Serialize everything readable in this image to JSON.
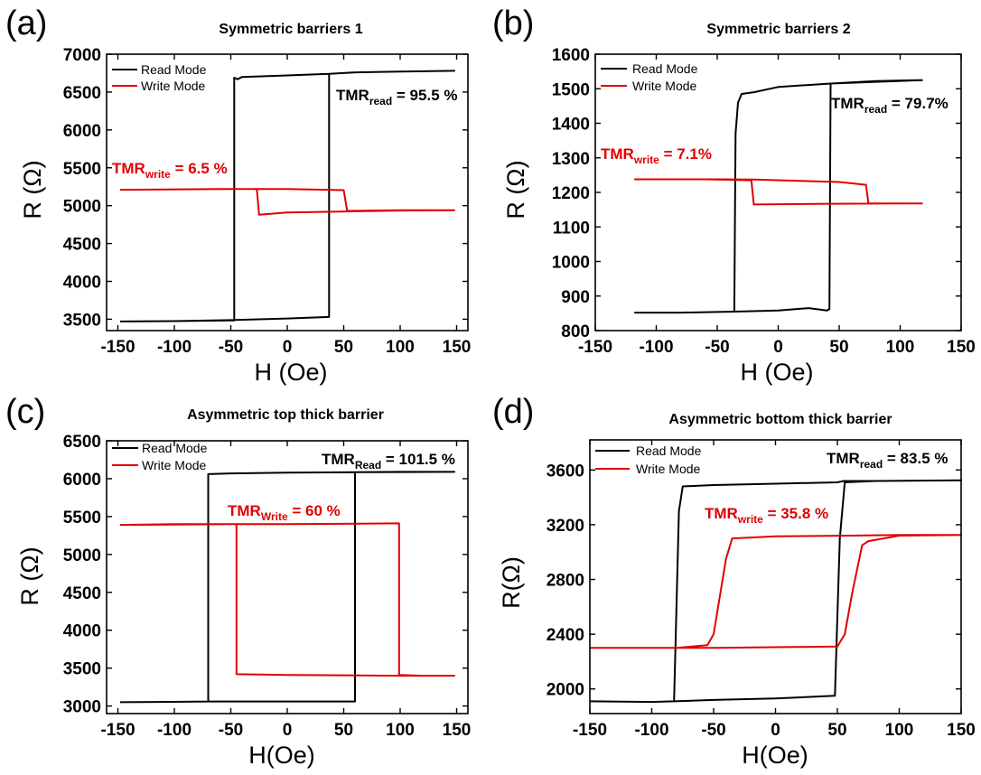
{
  "chart_data": [
    {
      "type": "line",
      "panel_label": "(a)",
      "title": "Symmetric barriers 1",
      "xlabel": "H (Oe)",
      "ylabel": "R (Ω)",
      "xlim": [
        -160,
        160
      ],
      "ylim": [
        3350,
        7000
      ],
      "xticks": [
        -150,
        -100,
        -50,
        0,
        50,
        100,
        150
      ],
      "yticks": [
        3500,
        4000,
        4500,
        5000,
        5500,
        6000,
        6500,
        7000
      ],
      "legend": {
        "position": "top-left",
        "entries": [
          "Read Mode",
          "Write Mode"
        ]
      },
      "series": [
        {
          "name": "Read Mode",
          "color": "#000000",
          "x": [
            -148,
            -100,
            -47,
            -47,
            -44,
            -40,
            0,
            37,
            60,
            100,
            148,
            148,
            100,
            60,
            37,
            37,
            0,
            -47,
            -100,
            -148
          ],
          "y": [
            3470,
            3475,
            3485,
            6690,
            6670,
            6700,
            6720,
            6740,
            6760,
            6770,
            6780,
            6780,
            6770,
            6760,
            6740,
            3530,
            3510,
            3490,
            3475,
            3470
          ]
        },
        {
          "name": "Write Mode",
          "color": "#e00000",
          "x": [
            -148,
            -50,
            0,
            50,
            53,
            100,
            148,
            148,
            100,
            0,
            -25,
            -27,
            -60,
            -148
          ],
          "y": [
            5210,
            5220,
            5220,
            5205,
            4930,
            4940,
            4940,
            4940,
            4935,
            4910,
            4880,
            5220,
            5220,
            5210
          ]
        }
      ],
      "annotations": [
        {
          "main": "TMR",
          "sub": "read",
          "rest": " = 95.5 %",
          "color": "#000000"
        },
        {
          "main": "TMR",
          "sub": "write",
          "rest": " = 6.5 %",
          "color": "#e00000"
        }
      ]
    },
    {
      "type": "line",
      "panel_label": "(b)",
      "title": "Symmetric barriers 2",
      "xlabel": "H (Oe)",
      "ylabel": "R (Ω)",
      "xlim": [
        -150,
        150
      ],
      "ylim": [
        800,
        1600
      ],
      "xticks": [
        -150,
        -100,
        -50,
        0,
        50,
        100,
        150
      ],
      "yticks": [
        800,
        900,
        1000,
        1100,
        1200,
        1300,
        1400,
        1500,
        1600
      ],
      "legend": {
        "position": "top-left",
        "entries": [
          "Read Mode",
          "Write Mode"
        ]
      },
      "series": [
        {
          "name": "Read Mode",
          "color": "#000000",
          "x": [
            -118,
            -80,
            -36,
            -35,
            -33,
            -30,
            -20,
            0,
            43,
            80,
            118,
            118,
            80,
            43,
            42,
            40,
            25,
            0,
            -36,
            -80,
            -118
          ],
          "y": [
            852,
            852,
            855,
            1370,
            1460,
            1485,
            1490,
            1505,
            1515,
            1520,
            1525,
            1525,
            1522,
            1515,
            862,
            858,
            865,
            858,
            855,
            852,
            852
          ]
        },
        {
          "name": "Write Mode",
          "color": "#e00000",
          "x": [
            -118,
            -50,
            -20,
            50,
            72,
            74,
            100,
            118,
            118,
            100,
            40,
            -20,
            -22,
            -60,
            -118
          ],
          "y": [
            1238,
            1238,
            1237,
            1230,
            1222,
            1168,
            1168,
            1168,
            1168,
            1168,
            1167,
            1165,
            1235,
            1238,
            1238
          ]
        }
      ],
      "annotations": [
        {
          "main": "TMR",
          "sub": "read",
          "rest": " = 79.7%",
          "color": "#000000"
        },
        {
          "main": "TMR",
          "sub": "write",
          "rest": " = 7.1%",
          "color": "#e00000"
        }
      ]
    },
    {
      "type": "line",
      "panel_label": "(c)",
      "title": "Asymmetric top thick barrier",
      "xlabel": "H(Oe)",
      "ylabel": "R (Ω)",
      "xlim": [
        -160,
        160
      ],
      "ylim": [
        2900,
        6500
      ],
      "xticks": [
        -150,
        -100,
        -50,
        0,
        50,
        100,
        150
      ],
      "yticks": [
        3000,
        3500,
        4000,
        4500,
        5000,
        5500,
        6000,
        6500
      ],
      "legend": {
        "position": "top-left",
        "entries": [
          "Read Mode",
          "Write Mode"
        ]
      },
      "series": [
        {
          "name": "Read Mode",
          "color": "#000000",
          "x": [
            -148,
            -100,
            -70,
            -70,
            -50,
            0,
            60,
            100,
            148,
            148,
            100,
            60,
            60,
            0,
            -70,
            -100,
            -148
          ],
          "y": [
            3050,
            3055,
            3060,
            6060,
            6070,
            6080,
            6085,
            6090,
            6090,
            6090,
            6088,
            6085,
            3060,
            3060,
            3060,
            3055,
            3050
          ]
        },
        {
          "name": "Write Mode",
          "color": "#e00000",
          "x": [
            -148,
            -100,
            -50,
            0,
            50,
            99,
            99,
            120,
            148,
            148,
            100,
            50,
            0,
            -45,
            -45,
            -100,
            -148
          ],
          "y": [
            5390,
            5395,
            5400,
            5400,
            5405,
            5410,
            3410,
            3400,
            3400,
            3400,
            3400,
            3405,
            3410,
            3420,
            5400,
            5400,
            5390
          ]
        }
      ],
      "annotations": [
        {
          "main": "TMR",
          "sub": "Read",
          "rest": " = 101.5 %",
          "color": "#000000"
        },
        {
          "main": "TMR",
          "sub": "Write",
          "rest": " = 60 %",
          "color": "#e00000"
        }
      ]
    },
    {
      "type": "line",
      "panel_label": "(d)",
      "title": "Asymmetric bottom thick barrier",
      "xlabel": "H(Oe)",
      "ylabel": "R(Ω)",
      "xlim": [
        -150,
        150
      ],
      "ylim": [
        1820,
        3820
      ],
      "xticks": [
        -150,
        -100,
        -50,
        0,
        50,
        100,
        150
      ],
      "yticks": [
        2000,
        2400,
        2800,
        3200,
        3600
      ],
      "legend": {
        "position": "top-left",
        "entries": [
          "Read Mode",
          "Write Mode"
        ]
      },
      "series": [
        {
          "name": "Read Mode",
          "color": "#000000",
          "x": [
            -150,
            -100,
            -82,
            -78,
            -75,
            -50,
            0,
            50,
            55,
            80,
            150,
            150,
            80,
            56,
            52,
            48,
            0,
            -50,
            -82,
            -100,
            -150
          ],
          "y": [
            1910,
            1905,
            1910,
            3300,
            3480,
            3490,
            3500,
            3510,
            3520,
            3520,
            3525,
            3525,
            3520,
            3510,
            3100,
            1950,
            1930,
            1920,
            1910,
            1905,
            1910
          ]
        },
        {
          "name": "Write Mode",
          "color": "#e00000",
          "x": [
            -150,
            -80,
            -55,
            -50,
            -40,
            -35,
            0,
            60,
            100,
            150,
            150,
            100,
            75,
            70,
            62,
            56,
            50,
            0,
            -50,
            -100,
            -150
          ],
          "y": [
            2300,
            2300,
            2320,
            2400,
            2950,
            3100,
            3115,
            3120,
            3125,
            3125,
            3125,
            3120,
            3080,
            3050,
            2700,
            2400,
            2310,
            2305,
            2300,
            2300,
            2300
          ]
        }
      ],
      "annotations": [
        {
          "main": "TMR",
          "sub": "read",
          "rest": " = 83.5 %",
          "color": "#000000"
        },
        {
          "main": "TMR",
          "sub": "write",
          "rest": " = 35.8 %",
          "color": "#e00000"
        }
      ]
    }
  ]
}
